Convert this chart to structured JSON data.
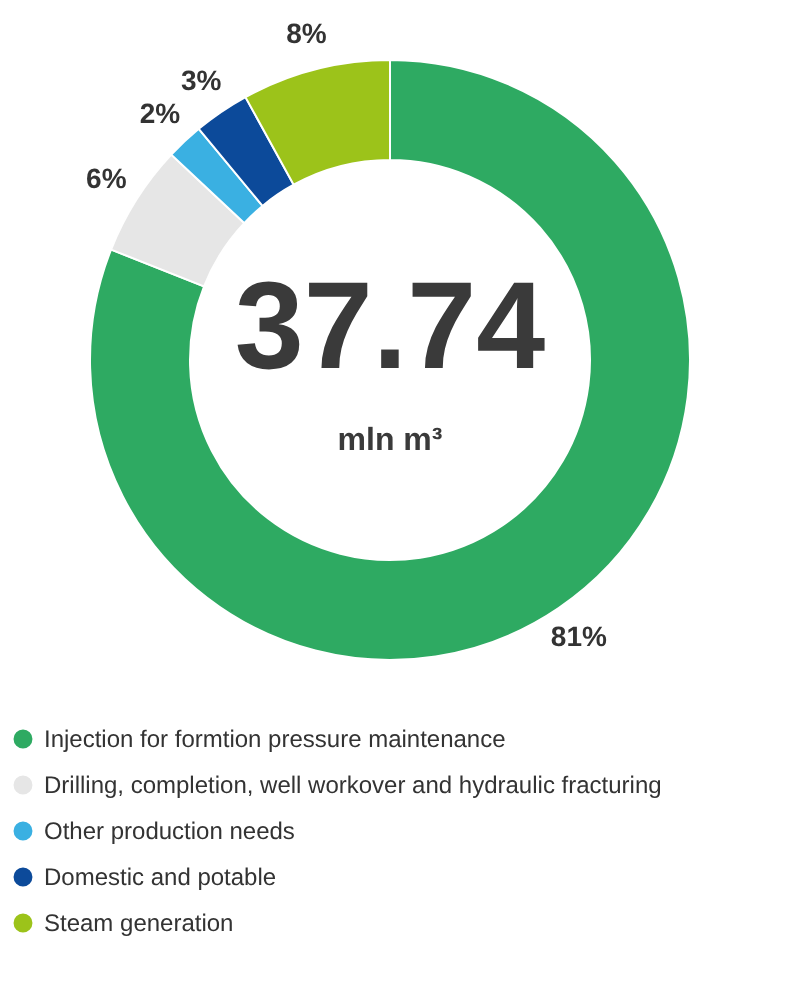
{
  "chart_data": {
    "type": "donut",
    "categories": [
      "Injection for formtion pressure maintenance",
      "Drilling, completion, well workover and hydraulic fracturing",
      "Other production needs",
      "Domestic and potable",
      "Steam generation"
    ],
    "values": [
      81,
      6,
      2,
      3,
      8
    ],
    "colors": [
      "#2eaa62",
      "#e6e6e6",
      "#3ab0e2",
      "#0c4a9a",
      "#9cc31a"
    ],
    "value_labels": [
      "81%",
      "6%",
      "2%",
      "3%",
      "8%"
    ],
    "annotations": [
      "37.74",
      "mln m³"
    ],
    "legend": "bottom"
  }
}
